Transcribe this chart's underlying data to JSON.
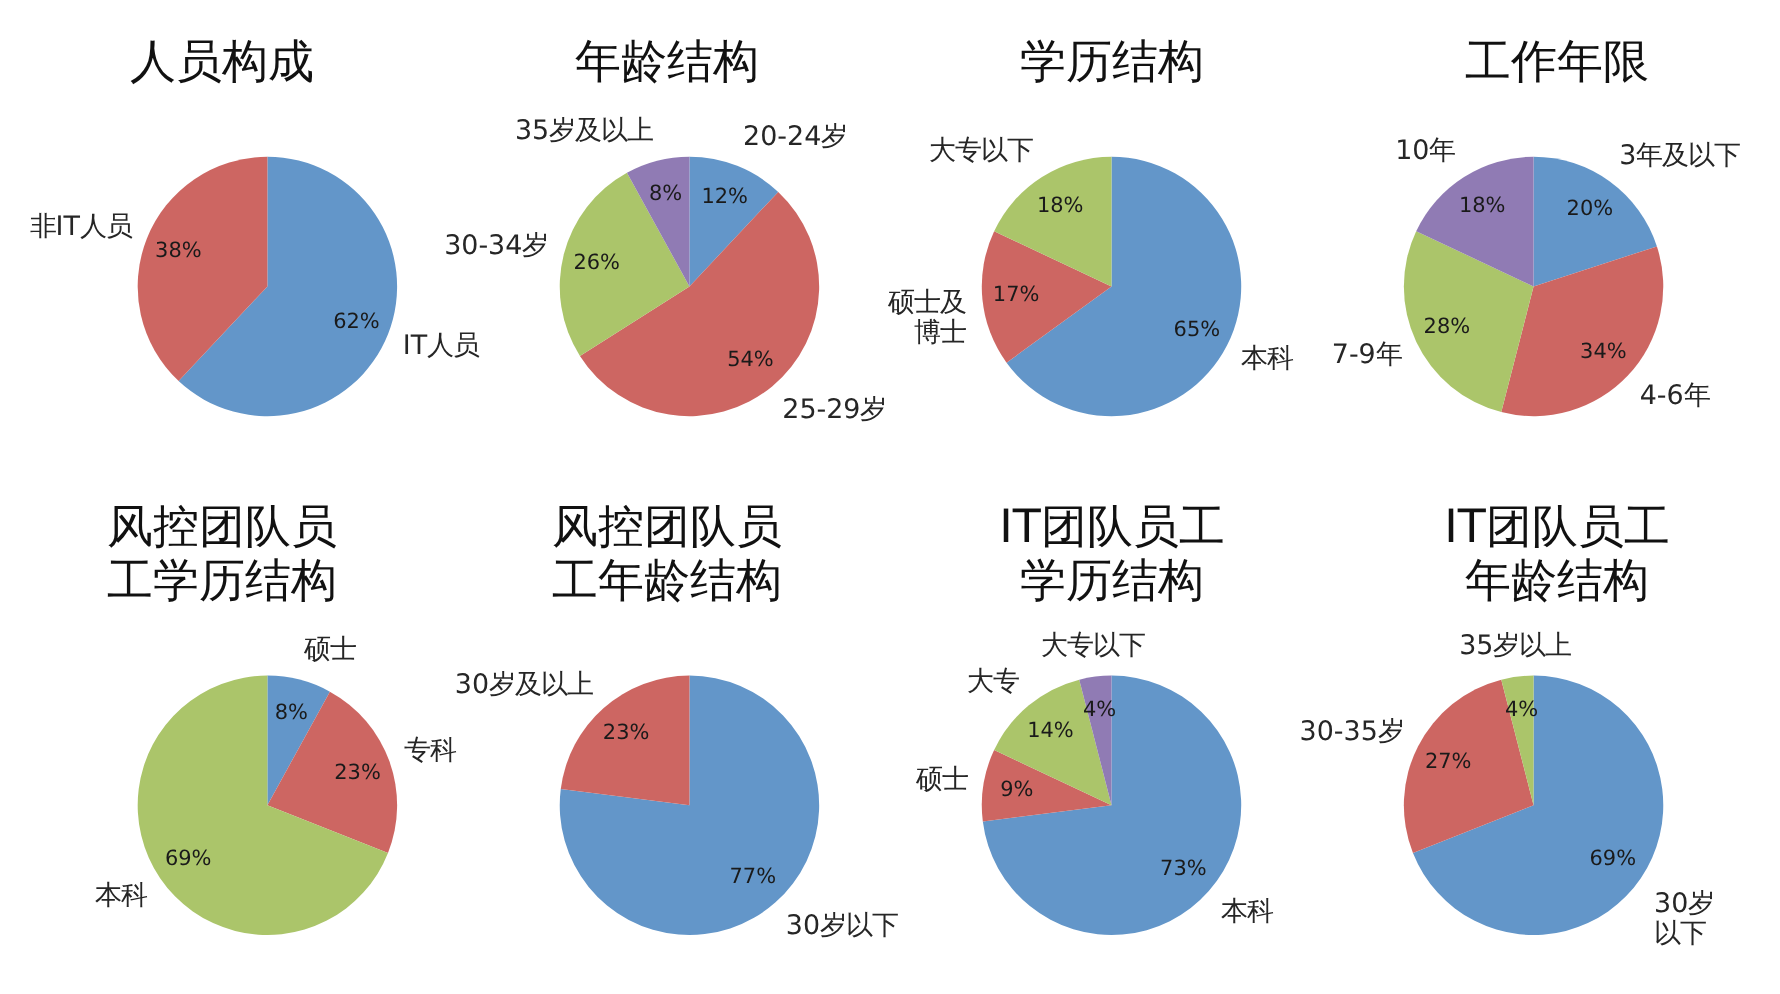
{
  "chart_data": [
    {
      "type": "pie",
      "title": "人员构成",
      "categories": [
        "IT人员",
        "非IT人员"
      ],
      "values": [
        62,
        38
      ],
      "colors": [
        "#6396c9",
        "#cd6662"
      ],
      "value_labels": [
        "62%",
        "38%"
      ]
    },
    {
      "type": "pie",
      "title": "年龄结构",
      "categories": [
        "20-24岁",
        "25-29岁",
        "30-34岁",
        "35岁及以上"
      ],
      "values": [
        12,
        54,
        26,
        8
      ],
      "colors": [
        "#6396c9",
        "#cd6662",
        "#abc56a",
        "#907bb4"
      ],
      "value_labels": [
        "12%",
        "54%",
        "26%",
        "8%"
      ]
    },
    {
      "type": "pie",
      "title": "学历结构",
      "categories": [
        "本科",
        "硕士及博士",
        "大专以下"
      ],
      "values": [
        65,
        17,
        18
      ],
      "colors": [
        "#6396c9",
        "#cd6662",
        "#abc56a"
      ],
      "value_labels": [
        "65%",
        "17%",
        "18%"
      ]
    },
    {
      "type": "pie",
      "title": "工作年限",
      "categories": [
        "3年及以下",
        "4-6年",
        "7-9年",
        "10年"
      ],
      "values": [
        20,
        34,
        28,
        18
      ],
      "colors": [
        "#6396c9",
        "#cd6662",
        "#abc56a",
        "#907bb4"
      ],
      "value_labels": [
        "20%",
        "34%",
        "28%",
        "18%"
      ]
    },
    {
      "type": "pie",
      "title": "风控团队员工学历结构",
      "categories": [
        "硕士",
        "专科",
        "本科"
      ],
      "values": [
        8,
        23,
        69
      ],
      "colors": [
        "#6396c9",
        "#cd6662",
        "#abc56a"
      ],
      "value_labels": [
        "8%",
        "23%",
        "69%"
      ]
    },
    {
      "type": "pie",
      "title": "风控团队员工年龄结构",
      "categories": [
        "30岁以下",
        "30岁及以上"
      ],
      "values": [
        77,
        23
      ],
      "colors": [
        "#6396c9",
        "#cd6662"
      ],
      "value_labels": [
        "77%",
        "23%"
      ]
    },
    {
      "type": "pie",
      "title": "IT团队员工学历结构",
      "categories": [
        "本科",
        "硕士",
        "大专",
        "大专以下"
      ],
      "values": [
        73,
        9,
        14,
        4
      ],
      "colors": [
        "#6396c9",
        "#cd6662",
        "#abc56a",
        "#907bb4"
      ],
      "value_labels": [
        "73%",
        "9%",
        "14%",
        "4%"
      ]
    },
    {
      "type": "pie",
      "title": "IT团队员工年龄结构",
      "categories": [
        "30岁以下",
        "30-35岁",
        "35岁以上"
      ],
      "values": [
        69,
        27,
        4
      ],
      "colors": [
        "#6396c9",
        "#cd6662",
        "#abc56a"
      ],
      "value_labels": [
        "69%",
        "27%",
        "4%"
      ]
    }
  ]
}
